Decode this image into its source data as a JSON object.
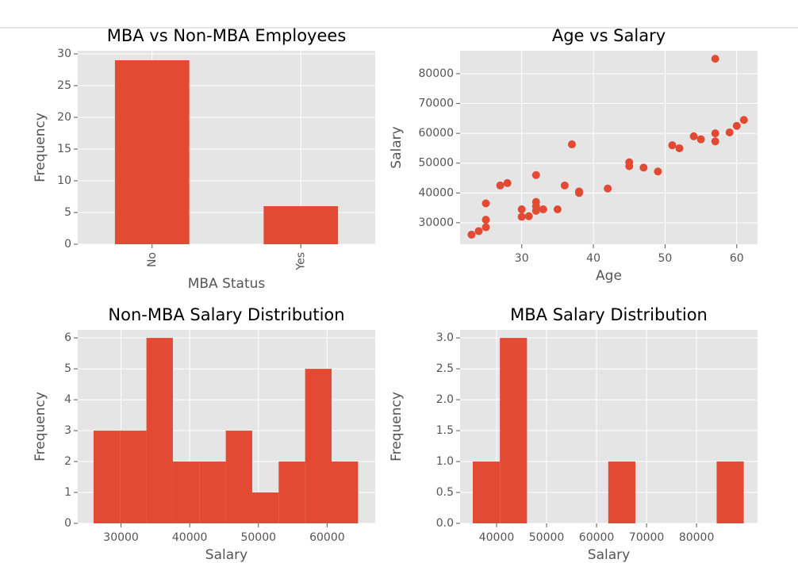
{
  "chart_data": [
    {
      "type": "bar",
      "title": "MBA vs Non-MBA Employees",
      "xlabel": "MBA Status",
      "ylabel": "Frequency",
      "categories": [
        "No",
        "Yes"
      ],
      "values": [
        29,
        6
      ],
      "color": "#E24A33",
      "ylim": [
        0,
        30.5
      ],
      "yticks": [
        0,
        5,
        10,
        15,
        20,
        25,
        30
      ],
      "grid": true,
      "rotate_xticks": true
    },
    {
      "type": "scatter",
      "title": "Age vs Salary",
      "xlabel": "Age",
      "ylabel": "Salary",
      "color": "#E24A33",
      "x": [
        23,
        24,
        25,
        25,
        25,
        27,
        28,
        30,
        30,
        31,
        32,
        32,
        32,
        32,
        33,
        35,
        36,
        37,
        38,
        38,
        42,
        45,
        45,
        47,
        49,
        51,
        52,
        54,
        55,
        57,
        57,
        57,
        59,
        60,
        61
      ],
      "values": [
        26000,
        27200,
        28500,
        31000,
        36500,
        42500,
        43300,
        32000,
        34500,
        32200,
        34000,
        35500,
        37000,
        46000,
        34500,
        34500,
        42500,
        56300,
        40000,
        40500,
        41500,
        49000,
        50300,
        48500,
        47200,
        56000,
        55000,
        59000,
        58000,
        57300,
        60000,
        85000,
        60300,
        62500,
        64500
      ],
      "xlim": [
        21.4,
        62.9
      ],
      "xticks": [
        30,
        40,
        50,
        60
      ],
      "ylim": [
        22800,
        87700
      ],
      "yticks": [
        30000,
        40000,
        50000,
        60000,
        70000,
        80000
      ],
      "grid": true
    },
    {
      "type": "histogram",
      "title": "Non-MBA Salary Distribution",
      "xlabel": "Salary",
      "ylabel": "Frequency",
      "color": "#E24A33",
      "bins": [
        26000,
        29850,
        33700,
        37550,
        41400,
        45250,
        49100,
        52950,
        56800,
        60650,
        64500
      ],
      "values": [
        3,
        3,
        6,
        2,
        2,
        3,
        1,
        2,
        5,
        2
      ],
      "xlim": [
        23700,
        67000
      ],
      "xticks": [
        30000,
        40000,
        50000,
        60000
      ],
      "ylim": [
        0,
        6.26
      ],
      "yticks": [
        0,
        1,
        2,
        3,
        4,
        5,
        6
      ],
      "grid": true
    },
    {
      "type": "histogram",
      "title": "MBA Salary Distribution",
      "xlabel": "Salary",
      "ylabel": "Frequency",
      "color": "#E24A33",
      "bins": [
        35240,
        40660,
        46080,
        51500,
        56920,
        62340,
        67760,
        73180,
        78600,
        84020,
        89440
      ],
      "values": [
        1,
        3,
        0,
        0,
        0,
        1,
        0,
        0,
        0,
        1
      ],
      "xlim": [
        32700,
        92200
      ],
      "xticks": [
        40000,
        50000,
        60000,
        70000,
        80000
      ],
      "ylim": [
        0,
        3.13
      ],
      "yticks": [
        {
          "value": 0,
          "label": "0.0"
        },
        0.5,
        {
          "value": 1,
          "label": "1.0"
        },
        1.5,
        {
          "value": 2,
          "label": "2.0"
        },
        2.5,
        {
          "value": 3,
          "label": "3.0"
        }
      ],
      "grid": true
    }
  ]
}
